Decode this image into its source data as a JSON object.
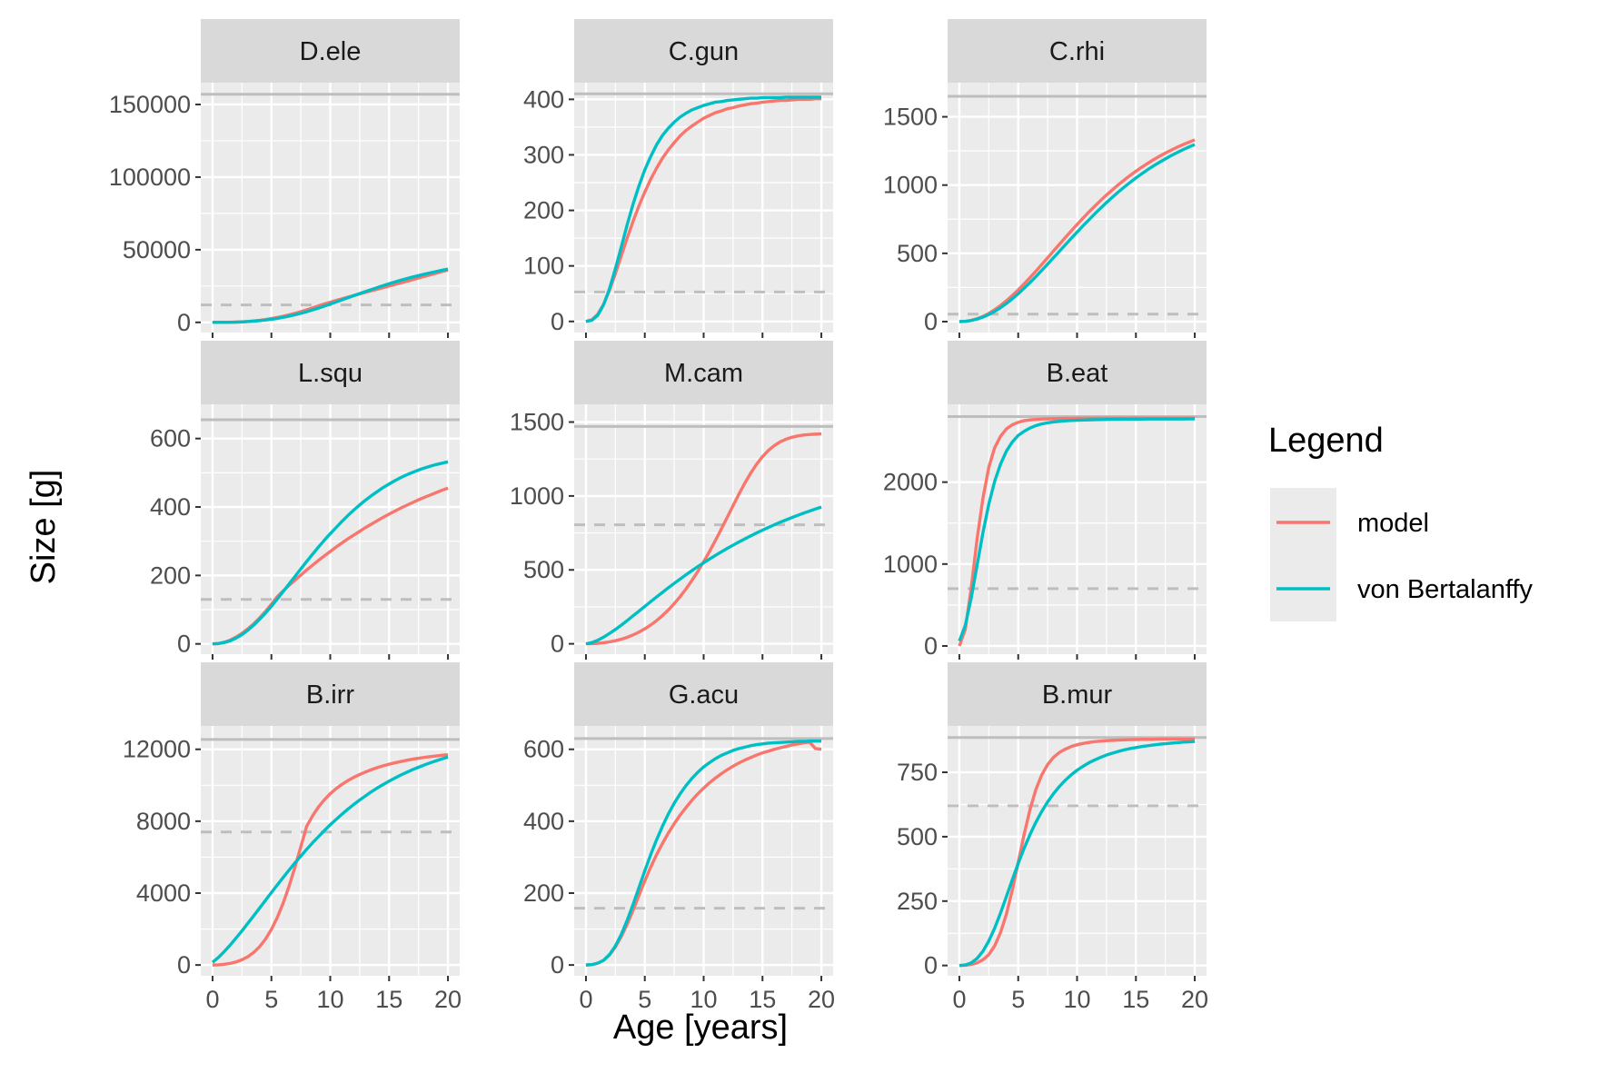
{
  "chart_data": {
    "type": "line",
    "layout": "facet-grid 3x3",
    "xlabel": "Age [years]",
    "ylabel": "Size [g]",
    "xlim": [
      0,
      20
    ],
    "x_ticks": [
      0,
      5,
      10,
      15,
      20
    ],
    "grid": true,
    "legend": {
      "title": "Legend",
      "position": "right",
      "items": [
        {
          "name": "model",
          "color": "#F8766D"
        },
        {
          "name": "von Bertalanffy",
          "color": "#00BFC4"
        }
      ]
    },
    "reference_lines": {
      "solid": "maximum size",
      "dashed": "maturity size",
      "color": "#BEBEBE"
    },
    "series_names": [
      "model",
      "von Bertalanffy"
    ],
    "x": [
      0,
      0.5,
      1,
      1.5,
      2,
      2.5,
      3,
      3.5,
      4,
      4.5,
      5,
      5.5,
      6,
      6.5,
      7,
      7.5,
      8,
      8.5,
      9,
      9.5,
      10,
      10.5,
      11,
      11.5,
      12,
      12.5,
      13,
      13.5,
      14,
      14.5,
      15,
      15.5,
      16,
      16.5,
      17,
      17.5,
      18,
      18.5,
      19,
      19.5,
      20
    ],
    "panels": [
      {
        "label": "D.ele",
        "yticks": [
          0,
          50000,
          100000,
          150000
        ],
        "ylim": [
          -7000,
          165000
        ],
        "max_size": 157000,
        "maturity_size": 12000,
        "model": [
          0,
          4,
          28,
          90,
          200,
          380,
          640,
          990,
          1440,
          1990,
          2640,
          3390,
          4240,
          5190,
          6240,
          7390,
          8640,
          9990,
          11400,
          12700,
          13900,
          15100,
          16200,
          17400,
          18500,
          19600,
          20700,
          21800,
          22800,
          23900,
          25000,
          26100,
          27200,
          28300,
          29400,
          30500,
          31600,
          32700,
          33800,
          35000,
          36000
        ],
        "vb": [
          0,
          4,
          26,
          82,
          180,
          330,
          540,
          820,
          1170,
          1610,
          2140,
          2760,
          3480,
          4300,
          5220,
          6230,
          7340,
          8540,
          9830,
          11200,
          12600,
          14000,
          15500,
          16900,
          18400,
          19800,
          21200,
          22600,
          24000,
          25300,
          26600,
          27800,
          29000,
          30100,
          31200,
          32200,
          33200,
          34100,
          35000,
          35900,
          36700
        ]
      },
      {
        "label": "C.gun",
        "yticks": [
          0,
          100,
          200,
          300,
          400
        ],
        "ylim": [
          -20,
          430
        ],
        "max_size": 410,
        "maturity_size": 53,
        "model": [
          0,
          3,
          13,
          31,
          56,
          86,
          118,
          150,
          180,
          208,
          233,
          256,
          276,
          294,
          309,
          322,
          334,
          344,
          352,
          359,
          366,
          371,
          376,
          379,
          383,
          385,
          388,
          390,
          392,
          393,
          395,
          396,
          397,
          398,
          398,
          399,
          400,
          400,
          400,
          401,
          401
        ],
        "vb": [
          0,
          2,
          11,
          30,
          59,
          95,
          134,
          174,
          211,
          244,
          273,
          297,
          318,
          335,
          348,
          359,
          368,
          375,
          381,
          385,
          389,
          392,
          395,
          396,
          398,
          399,
          400,
          401,
          402,
          402,
          403,
          403,
          403,
          403,
          404,
          404,
          404,
          404,
          404,
          404,
          404
        ]
      },
      {
        "label": "C.rhi",
        "yticks": [
          0,
          500,
          1000,
          1500
        ],
        "ylim": [
          -80,
          1750
        ],
        "max_size": 1650,
        "maturity_size": 55,
        "model": [
          0,
          2,
          9,
          21,
          38,
          60,
          87,
          118,
          153,
          191,
          232,
          276,
          322,
          369,
          418,
          467,
          517,
          566,
          615,
          664,
          711,
          757,
          802,
          845,
          887,
          927,
          965,
          1002,
          1037,
          1070,
          1101,
          1131,
          1159,
          1186,
          1211,
          1234,
          1256,
          1277,
          1296,
          1314,
          1331
        ],
        "vb": [
          0,
          2,
          8,
          18,
          33,
          52,
          75,
          102,
          133,
          167,
          204,
          244,
          286,
          330,
          375,
          421,
          468,
          515,
          562,
          609,
          655,
          701,
          745,
          789,
          831,
          872,
          911,
          949,
          985,
          1019,
          1052,
          1083,
          1113,
          1141,
          1167,
          1192,
          1216,
          1238,
          1259,
          1279,
          1297
        ]
      },
      {
        "label": "L.squ",
        "yticks": [
          0,
          200,
          400,
          600
        ],
        "ylim": [
          -30,
          700
        ],
        "max_size": 655,
        "maturity_size": 130,
        "model": [
          0,
          1,
          5,
          11,
          20,
          31,
          44,
          59,
          76,
          95,
          116,
          138,
          155,
          171,
          186,
          201,
          216,
          230,
          244,
          257,
          270,
          283,
          295,
          307,
          318,
          329,
          340,
          350,
          360,
          370,
          379,
          388,
          397,
          405,
          413,
          421,
          428,
          435,
          442,
          449,
          455
        ],
        "vb": [
          0,
          1,
          4,
          9,
          17,
          27,
          40,
          55,
          72,
          90,
          110,
          131,
          153,
          175,
          197,
          219,
          241,
          262,
          283,
          303,
          322,
          340,
          358,
          375,
          391,
          406,
          420,
          433,
          445,
          457,
          467,
          477,
          486,
          494,
          501,
          508,
          514,
          519,
          524,
          528,
          532
        ]
      },
      {
        "label": "M.cam",
        "yticks": [
          0,
          500,
          1000,
          1500
        ],
        "ylim": [
          -70,
          1620
        ],
        "max_size": 1470,
        "maturity_size": 805,
        "model": [
          0,
          1,
          3,
          7,
          13,
          21,
          31,
          44,
          60,
          79,
          101,
          127,
          157,
          191,
          229,
          272,
          319,
          371,
          428,
          489,
          555,
          625,
          699,
          776,
          855,
          935,
          1013,
          1087,
          1155,
          1215,
          1266,
          1308,
          1341,
          1366,
          1384,
          1397,
          1406,
          1412,
          1416,
          1418,
          1420
        ],
        "vb": [
          0,
          8,
          24,
          45,
          70,
          97,
          126,
          157,
          189,
          221,
          253,
          285,
          317,
          348,
          379,
          409,
          438,
          467,
          495,
          522,
          548,
          573,
          598,
          622,
          645,
          667,
          689,
          710,
          730,
          750,
          769,
          787,
          805,
          822,
          838,
          854,
          869,
          884,
          898,
          912,
          925
        ]
      },
      {
        "label": "B.eat",
        "yticks": [
          0,
          1000,
          2000
        ],
        "ylim": [
          -100,
          2950
        ],
        "max_size": 2800,
        "maturity_size": 700,
        "model": [
          0,
          200,
          700,
          1300,
          1800,
          2180,
          2420,
          2560,
          2650,
          2700,
          2730,
          2750,
          2760,
          2765,
          2770,
          2772,
          2774,
          2776,
          2778,
          2779,
          2780,
          2780,
          2781,
          2781,
          2781,
          2781,
          2782,
          2782,
          2782,
          2782,
          2782,
          2782,
          2782,
          2782,
          2782,
          2782,
          2782,
          2782,
          2782,
          2782,
          2782
        ],
        "vb": [
          60,
          250,
          580,
          980,
          1380,
          1730,
          2010,
          2220,
          2380,
          2490,
          2570,
          2620,
          2660,
          2690,
          2710,
          2725,
          2735,
          2742,
          2748,
          2752,
          2755,
          2758,
          2760,
          2762,
          2764,
          2765,
          2766,
          2767,
          2768,
          2768,
          2769,
          2769,
          2770,
          2770,
          2770,
          2771,
          2771,
          2771,
          2771,
          2772,
          2772
        ]
      },
      {
        "label": "B.irr",
        "yticks": [
          0,
          4000,
          8000,
          12000
        ],
        "ylim": [
          -600,
          13300
        ],
        "max_size": 12550,
        "maturity_size": 7400,
        "model": [
          0,
          12,
          40,
          90,
          170,
          290,
          460,
          700,
          1020,
          1440,
          1980,
          2640,
          3440,
          4380,
          5440,
          6580,
          7720,
          8300,
          8790,
          9190,
          9530,
          9810,
          10050,
          10260,
          10440,
          10600,
          10740,
          10870,
          10980,
          11080,
          11170,
          11250,
          11320,
          11390,
          11450,
          11500,
          11550,
          11590,
          11630,
          11670,
          11700
        ],
        "vb": [
          150,
          420,
          750,
          1110,
          1500,
          1900,
          2320,
          2740,
          3170,
          3600,
          4030,
          4450,
          4870,
          5280,
          5680,
          6060,
          6440,
          6800,
          7140,
          7480,
          7800,
          8100,
          8390,
          8670,
          8930,
          9180,
          9410,
          9640,
          9850,
          10040,
          10230,
          10400,
          10570,
          10720,
          10870,
          11000,
          11130,
          11250,
          11360,
          11470,
          11570
        ]
      },
      {
        "label": "G.acu",
        "yticks": [
          0,
          200,
          400,
          600
        ],
        "ylim": [
          -30,
          665
        ],
        "max_size": 630,
        "maturity_size": 158,
        "model": [
          0,
          1,
          5,
          13,
          28,
          50,
          79,
          113,
          152,
          193,
          234,
          272,
          307,
          338,
          367,
          393,
          417,
          438,
          458,
          476,
          492,
          507,
          520,
          532,
          543,
          553,
          562,
          570,
          577,
          584,
          590,
          595,
          600,
          604,
          608,
          612,
          615,
          618,
          620,
          602,
          600
        ],
        "vb": [
          0,
          1,
          5,
          13,
          29,
          53,
          85,
          124,
          168,
          215,
          262,
          307,
          348,
          386,
          420,
          450,
          476,
          499,
          519,
          536,
          551,
          563,
          574,
          583,
          590,
          597,
          602,
          606,
          610,
          613,
          615,
          617,
          618,
          619,
          620,
          621,
          622,
          622,
          623,
          623,
          623
        ]
      },
      {
        "label": "B.mur",
        "yticks": [
          0,
          250,
          500,
          750
        ],
        "ylim": [
          -40,
          930
        ],
        "max_size": 885,
        "maturity_size": 620,
        "model": [
          0,
          1,
          4,
          10,
          22,
          42,
          76,
          128,
          200,
          293,
          400,
          508,
          605,
          683,
          740,
          780,
          808,
          827,
          840,
          850,
          857,
          862,
          866,
          869,
          871,
          873,
          874,
          875,
          876,
          877,
          877,
          878,
          878,
          878,
          879,
          879,
          879,
          879,
          879,
          879,
          879
        ],
        "vb": [
          0,
          2,
          10,
          27,
          55,
          95,
          145,
          204,
          268,
          333,
          396,
          455,
          508,
          556,
          598,
          635,
          667,
          695,
          719,
          740,
          758,
          773,
          787,
          798,
          808,
          817,
          824,
          831,
          837,
          842,
          846,
          850,
          853,
          856,
          859,
          861,
          863,
          865,
          867,
          868,
          870
        ]
      }
    ]
  }
}
